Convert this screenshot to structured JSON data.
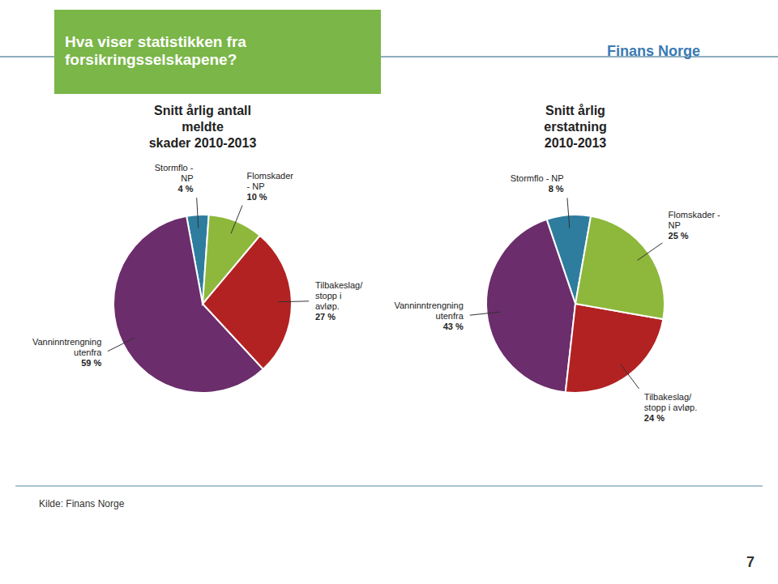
{
  "header": "Hva viser statistikken fra\nforsikringsselskapene?",
  "logo": "Finans Norge",
  "source": "Kilde: Finans Norge",
  "page_number": "7",
  "chart_data": [
    {
      "type": "pie",
      "title": [
        "Snitt årlig antall",
        "meldte",
        "skader 2010-2013"
      ],
      "categories": [
        "Stormflo -\nNP",
        "Vanninntrengning\nutenfra",
        "Tilbakeslag/\nstopp i\navløp.",
        "Flomskader\n- NP"
      ],
      "values": [
        4,
        59,
        27,
        10
      ],
      "value_labels": [
        "4 %",
        "59 %",
        "27 %",
        "10 %"
      ],
      "data_labels": true,
      "colors": [
        "#2e7d9e",
        "#6b2d6b",
        "#b22222",
        "#8db83b"
      ]
    },
    {
      "type": "pie",
      "title": [
        "Snitt årlig",
        "erstatning",
        "2010-2013"
      ],
      "categories": [
        "Stormflo - NP",
        "Vanninntrengning\nutenfra",
        "Tilbakeslag/\nstopp i avløp.",
        "Flomskader -\nNP"
      ],
      "values": [
        8,
        43,
        24,
        25
      ],
      "value_labels": [
        "8 %",
        "43 %",
        "24 %",
        "25 %"
      ],
      "data_labels": true,
      "colors": [
        "#2e7d9e",
        "#6b2d6b",
        "#b22222",
        "#8db83b"
      ]
    }
  ]
}
